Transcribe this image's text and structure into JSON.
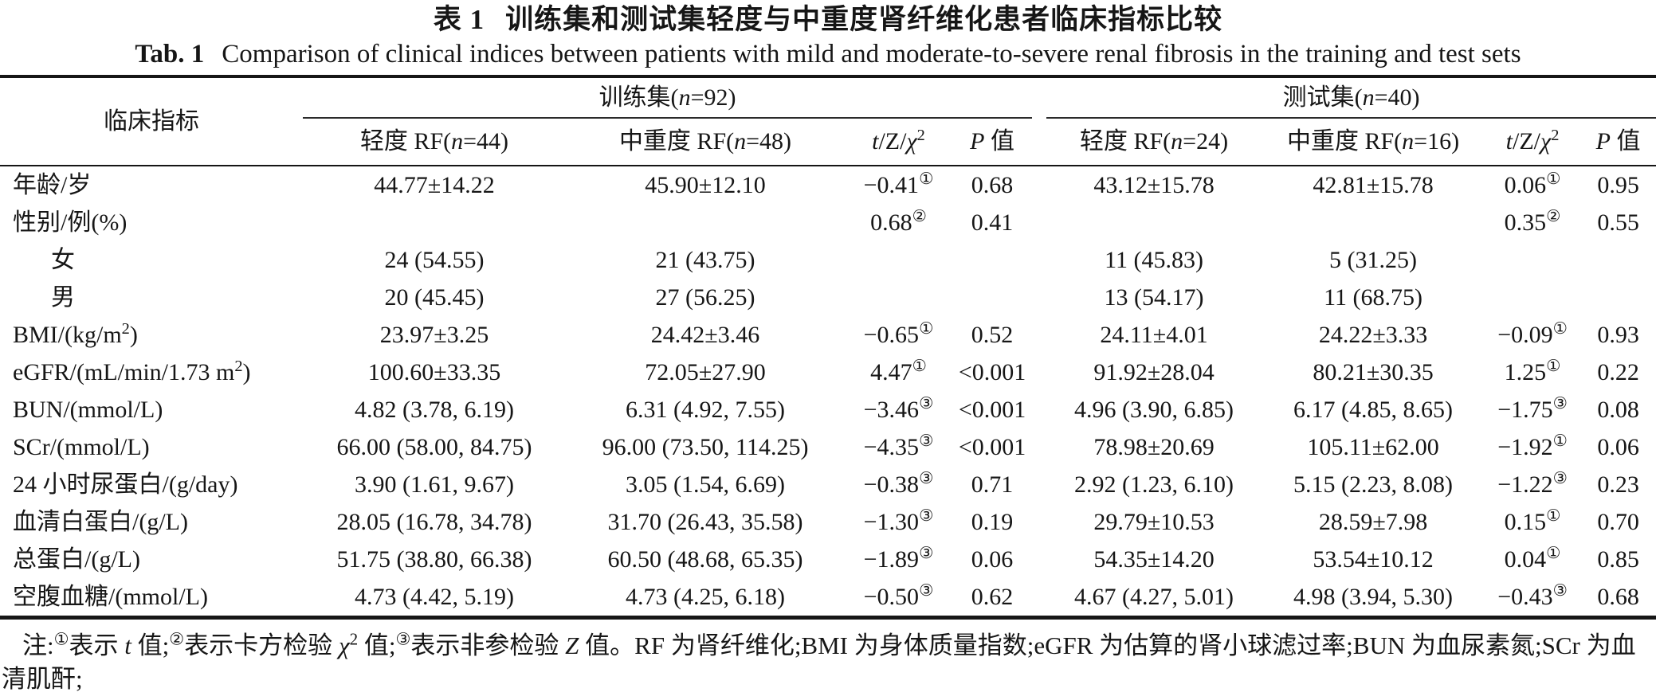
{
  "colors": {
    "ink": "#161616",
    "background": "#ffffff"
  },
  "page": {
    "title_zh": {
      "label": "表 1",
      "text": "训练集和测试集轻度与中重度肾纤维化患者临床指标比较"
    },
    "title_en": {
      "label": "Tab. 1",
      "text": "Comparison of clinical indices between patients with mild and moderate-to-severe renal fibrosis in the training and test sets"
    }
  },
  "header": {
    "indicator": "临床指标",
    "train_group": {
      "pre": "训练集(",
      "var": "n",
      "post": "=92)"
    },
    "test_group": {
      "pre": "测试集(",
      "var": "n",
      "post": "=40)"
    },
    "train_mild": {
      "pre": "轻度 RF(",
      "var": "n",
      "post": "=44)"
    },
    "train_severe": {
      "pre": "中重度 RF(",
      "var": "n",
      "post": "=48)"
    },
    "test_mild": {
      "pre": "轻度 RF(",
      "var": "n",
      "post": "=24)"
    },
    "test_severe": {
      "pre": "中重度 RF(",
      "var": "n",
      "post": "=16)"
    },
    "stat": {
      "t": "t",
      "mid": "/Z/",
      "chi": "χ",
      "sup": "2"
    },
    "p": {
      "var": "P",
      "label": " 值"
    }
  },
  "table": {
    "rows": [
      {
        "label": {
          "pre": "年龄/岁"
        },
        "indent": false,
        "cells": [
          "44.77±14.22",
          "45.90±12.10",
          {
            "v": "−0.41",
            "sup": "①"
          },
          "0.68",
          "43.12±15.78",
          "42.81±15.78",
          {
            "v": "0.06",
            "sup": "①"
          },
          "0.95"
        ]
      },
      {
        "label": {
          "pre": "性别/例(%)"
        },
        "indent": false,
        "cells": [
          "",
          "",
          {
            "v": "0.68",
            "sup": "②"
          },
          "0.41",
          "",
          "",
          {
            "v": "0.35",
            "sup": "②"
          },
          "0.55"
        ]
      },
      {
        "label": {
          "pre": "女"
        },
        "indent": true,
        "cells": [
          "24 (54.55)",
          "21 (43.75)",
          "",
          "",
          "11 (45.83)",
          "5 (31.25)",
          "",
          ""
        ]
      },
      {
        "label": {
          "pre": "男"
        },
        "indent": true,
        "cells": [
          "20 (45.45)",
          "27 (56.25)",
          "",
          "",
          "13 (54.17)",
          "11 (68.75)",
          "",
          ""
        ]
      },
      {
        "label": {
          "pre": "BMI/(kg/m",
          "sup": "2",
          "post": ")"
        },
        "indent": false,
        "cells": [
          "23.97±3.25",
          "24.42±3.46",
          {
            "v": "−0.65",
            "sup": "①"
          },
          "0.52",
          "24.11±4.01",
          "24.22±3.33",
          {
            "v": "−0.09",
            "sup": "①"
          },
          "0.93"
        ]
      },
      {
        "label": {
          "pre": "eGFR/(mL/min/1.73 m",
          "sup": "2",
          "post": ")"
        },
        "indent": false,
        "cells": [
          "100.60±33.35",
          "72.05±27.90",
          {
            "v": "4.47",
            "sup": "①"
          },
          "<0.001",
          "91.92±28.04",
          "80.21±30.35",
          {
            "v": "1.25",
            "sup": "①"
          },
          "0.22"
        ]
      },
      {
        "label": {
          "pre": "BUN/(mmol/L)"
        },
        "indent": false,
        "cells": [
          "4.82 (3.78, 6.19)",
          "6.31 (4.92, 7.55)",
          {
            "v": "−3.46",
            "sup": "③"
          },
          "<0.001",
          "4.96 (3.90, 6.85)",
          "6.17 (4.85, 8.65)",
          {
            "v": "−1.75",
            "sup": "③"
          },
          "0.08"
        ]
      },
      {
        "label": {
          "pre": "SCr/(mmol/L)"
        },
        "indent": false,
        "cells": [
          "66.00 (58.00, 84.75)",
          "96.00 (73.50, 114.25)",
          {
            "v": "−4.35",
            "sup": "③"
          },
          "<0.001",
          "78.98±20.69",
          "105.11±62.00",
          {
            "v": "−1.92",
            "sup": "①"
          },
          "0.06"
        ]
      },
      {
        "label": {
          "pre": "24 小时尿蛋白/(g/day)"
        },
        "indent": false,
        "cells": [
          "3.90 (1.61, 9.67)",
          "3.05 (1.54, 6.69)",
          {
            "v": "−0.38",
            "sup": "③"
          },
          "0.71",
          "2.92 (1.23, 6.10)",
          "5.15 (2.23, 8.08)",
          {
            "v": "−1.22",
            "sup": "③"
          },
          "0.23"
        ]
      },
      {
        "label": {
          "pre": "血清白蛋白/(g/L)"
        },
        "indent": false,
        "cells": [
          "28.05 (16.78, 34.78)",
          "31.70 (26.43, 35.58)",
          {
            "v": "−1.30",
            "sup": "③"
          },
          "0.19",
          "29.79±10.53",
          "28.59±7.98",
          {
            "v": "0.15",
            "sup": "①"
          },
          "0.70"
        ]
      },
      {
        "label": {
          "pre": "总蛋白/(g/L)"
        },
        "indent": false,
        "cells": [
          "51.75 (38.80, 66.38)",
          "60.50 (48.68, 65.35)",
          {
            "v": "−1.89",
            "sup": "③"
          },
          "0.06",
          "54.35±14.20",
          "53.54±10.12",
          {
            "v": "0.04",
            "sup": "①"
          },
          "0.85"
        ]
      },
      {
        "label": {
          "pre": "空腹血糖/(mmol/L)"
        },
        "indent": false,
        "cells": [
          "4.73 (4.42, 5.19)",
          "4.73 (4.25, 6.18)",
          {
            "v": "−0.50",
            "sup": "③"
          },
          "0.62",
          "4.67 (4.27, 5.01)",
          "4.98 (3.94, 5.30)",
          {
            "v": "−0.43",
            "sup": "③"
          },
          "0.68"
        ]
      }
    ]
  },
  "footnote": [
    {
      "t": "注:"
    },
    {
      "sup": "①"
    },
    {
      "t": "表示 "
    },
    {
      "i": "t"
    },
    {
      "t": " 值;"
    },
    {
      "sup": "②"
    },
    {
      "t": "表示卡方检验 "
    },
    {
      "i": "χ"
    },
    {
      "sup": "2"
    },
    {
      "t": " 值;"
    },
    {
      "sup": "③"
    },
    {
      "t": "表示非参检验 "
    },
    {
      "i": "Z"
    },
    {
      "t": " 值。RF 为肾纤维化;BMI 为身体质量指数;eGFR 为估算的肾小球滤过率;BUN 为血尿素氮;SCr 为血清肌酐;"
    }
  ]
}
